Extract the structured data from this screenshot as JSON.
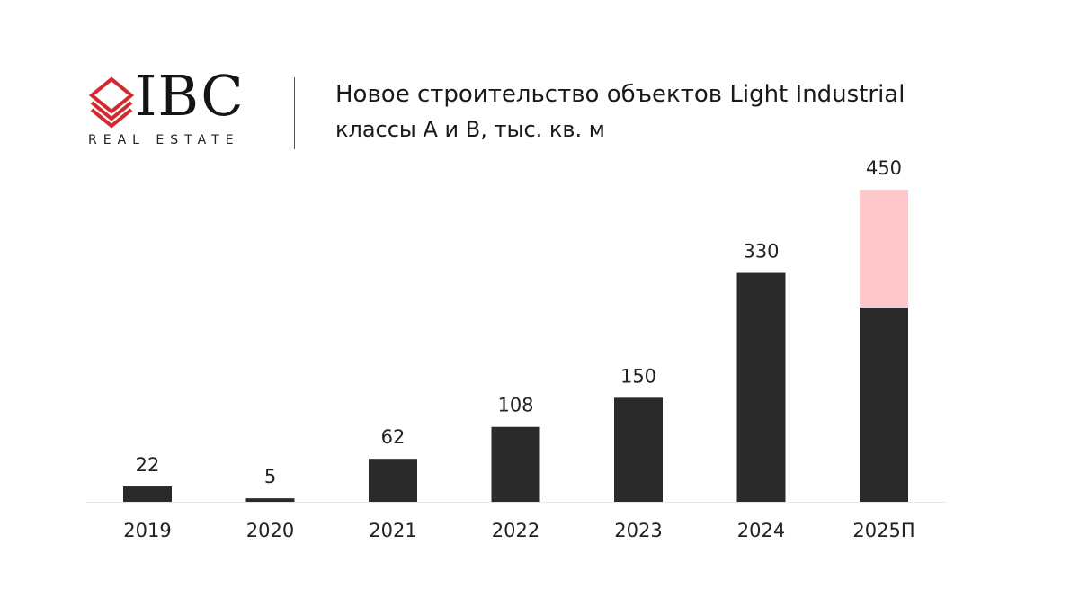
{
  "logo": {
    "wordmark": "IBC",
    "tagline": "REAL ESTATE",
    "mark_color": "#d9262c"
  },
  "header": {
    "title": "Новое строительство объектов Light Industrial",
    "subtitle": "классы А и В, тыс. кв. м"
  },
  "colors": {
    "bar": "#2a2a2a",
    "forecast_extra": "#ffc7ca",
    "baseline": "#e6e6e6"
  },
  "chart_data": {
    "type": "bar",
    "stacked": true,
    "categories": [
      "2019",
      "2020",
      "2021",
      "2022",
      "2023",
      "2024",
      "2025П"
    ],
    "series": [
      {
        "values": [
          22,
          5,
          62,
          108,
          150,
          330,
          280
        ],
        "color": "#2a2a2a"
      },
      {
        "values": [
          0,
          0,
          0,
          0,
          0,
          0,
          170
        ],
        "color": "#ffc7ca"
      }
    ],
    "data_labels": [
      "22",
      "5",
      "62",
      "108",
      "150",
      "330",
      "450"
    ],
    "title": "Новое строительство объектов Light Industrial",
    "subtitle": "классы А и В, тыс. кв. м",
    "xlabel": "",
    "ylabel": "",
    "ylim": [
      0,
      450
    ],
    "grid": false,
    "legend": "none"
  }
}
